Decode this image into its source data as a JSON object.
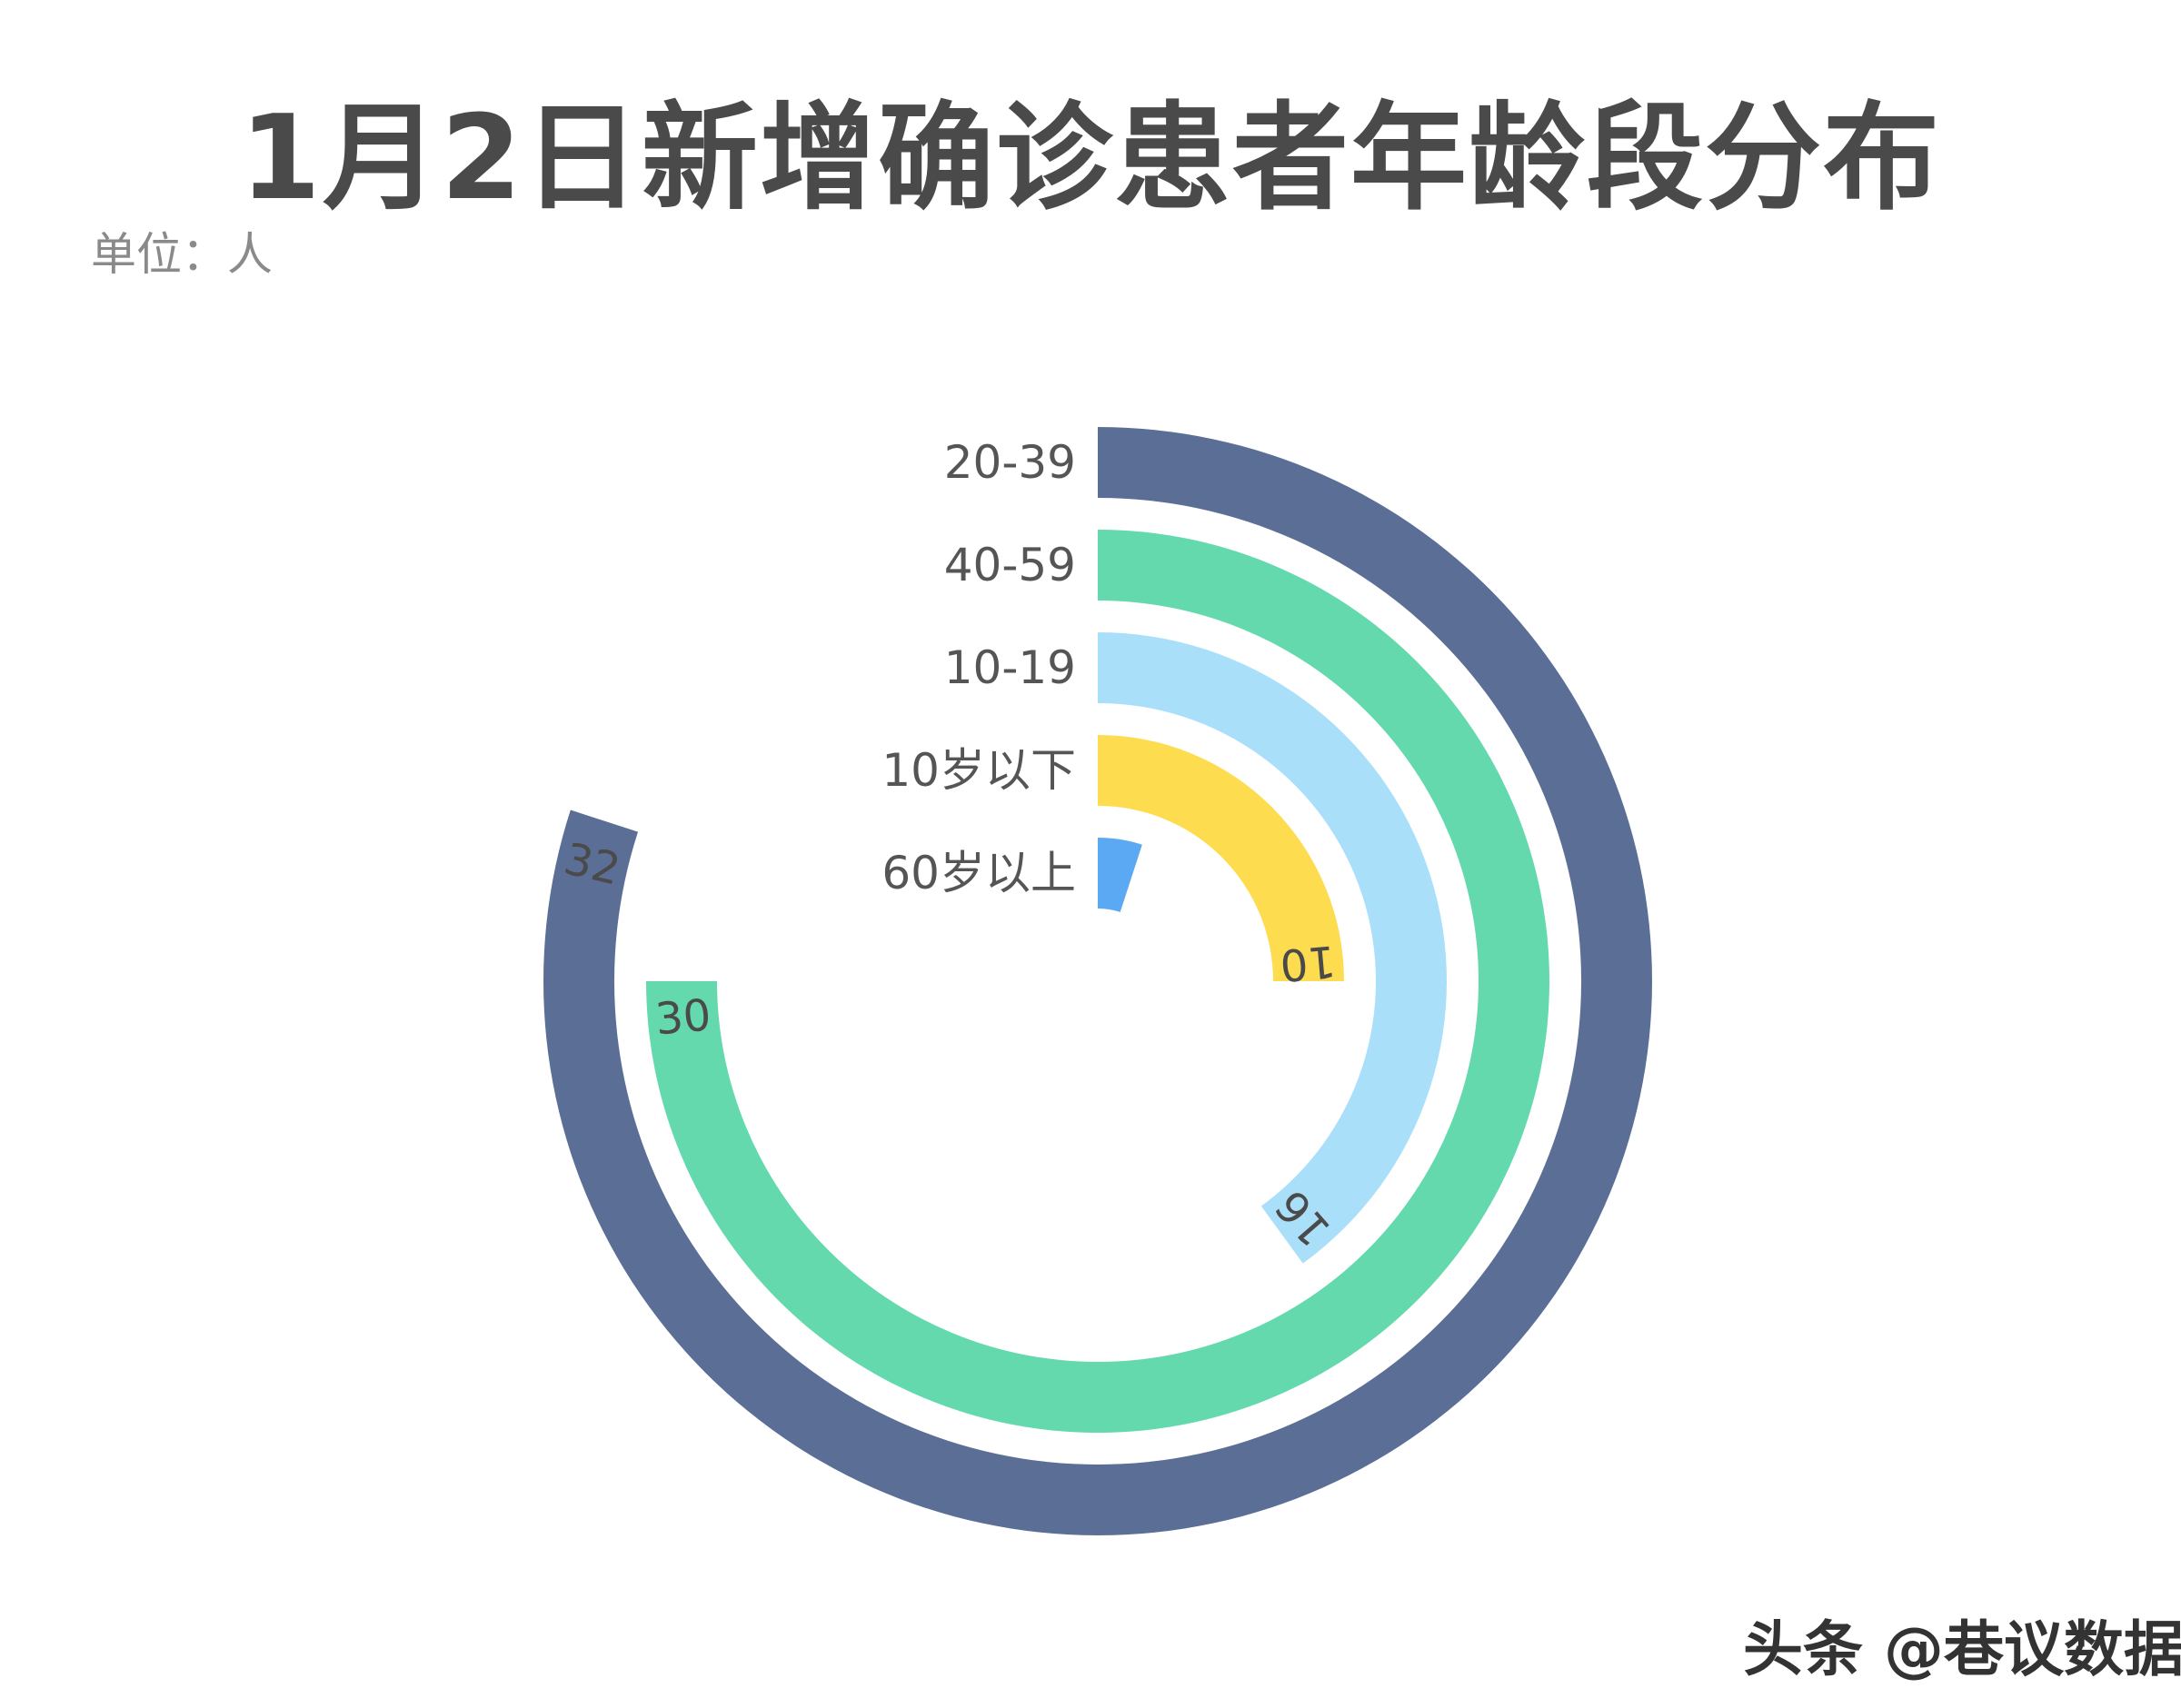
{
  "header": {
    "title": "1月2日新增确诊患者年龄段分布",
    "subtitle": "单位：人"
  },
  "watermark": {
    "platform": "头条",
    "handle": "@巷议数据"
  },
  "chart_data": {
    "type": "radial-bar",
    "title": "1月2日新增确诊患者年龄段分布",
    "unit": "单位：人",
    "max": 40,
    "categories": [
      "20-39",
      "40-59",
      "10-19",
      "10岁以下",
      "60岁以上"
    ],
    "values": [
      32,
      30,
      16,
      10,
      2
    ],
    "value_labels": [
      "32",
      "30",
      "16",
      "10",
      ""
    ],
    "colors": [
      "#5b6e96",
      "#64d9ad",
      "#aadffa",
      "#fddc4f",
      "#5aa9f2"
    ],
    "direction": "clockwise-from-top"
  }
}
